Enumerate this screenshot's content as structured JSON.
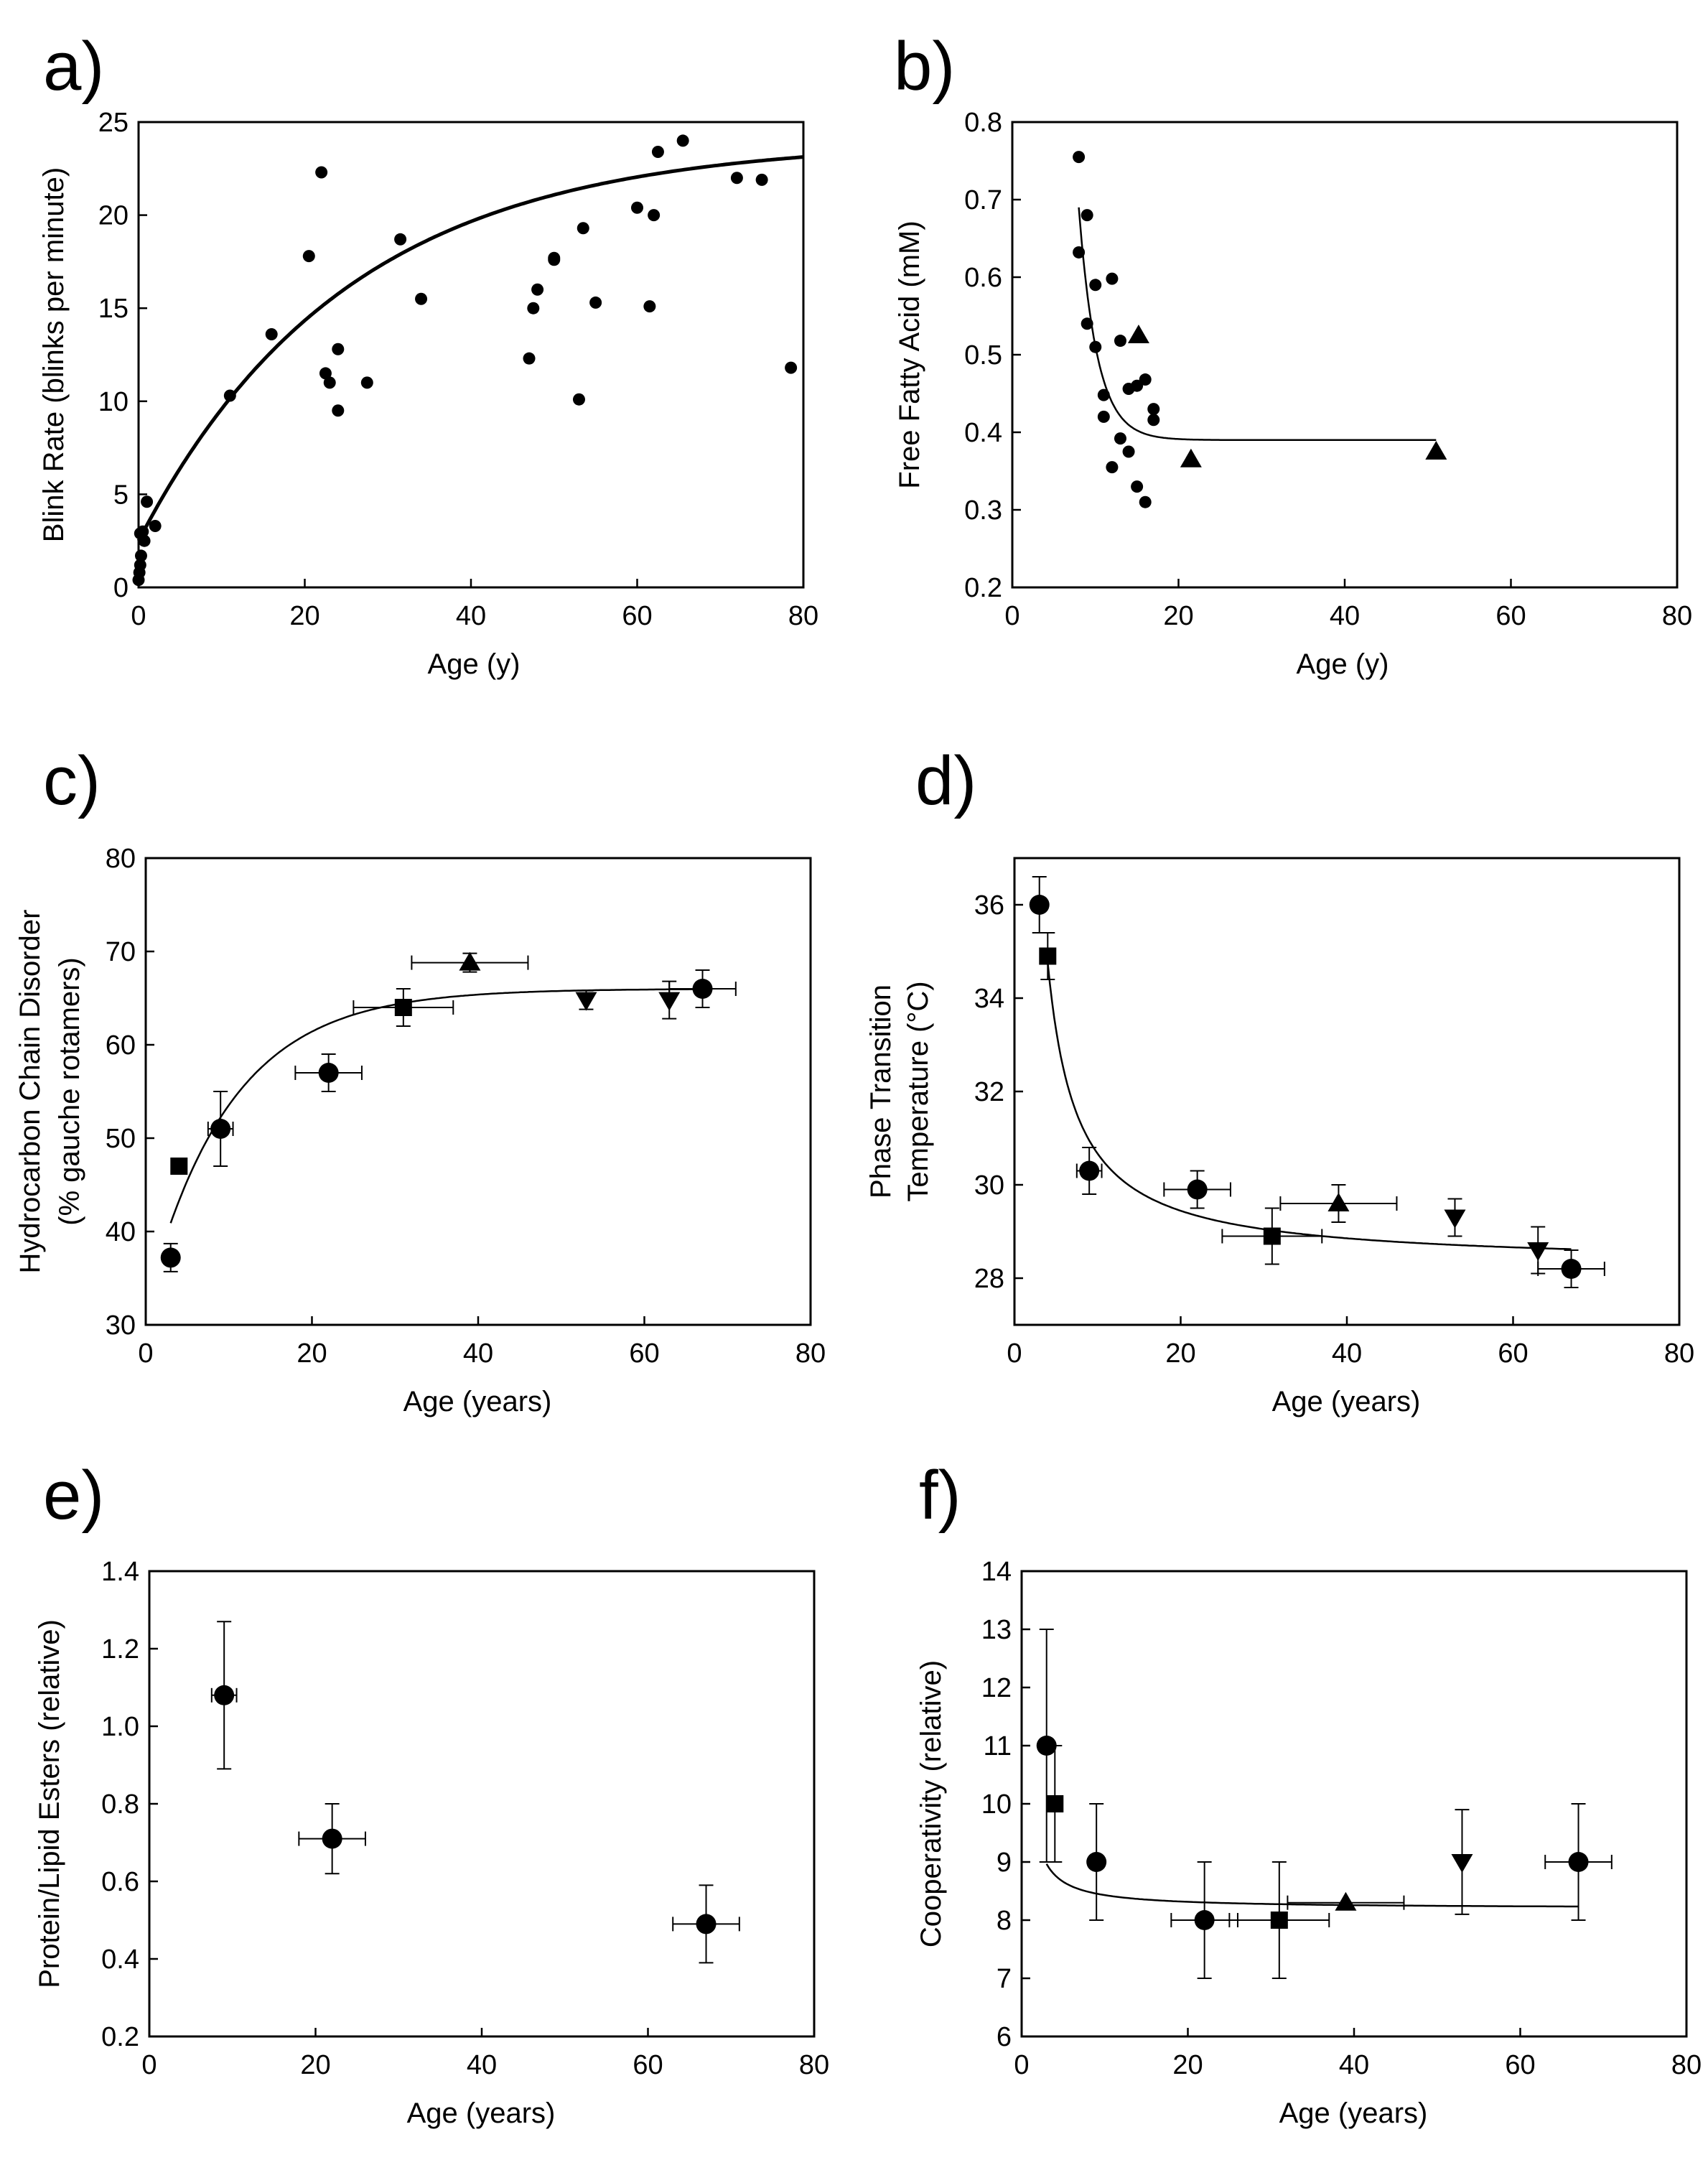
{
  "chart_data": [
    {
      "panel": "a)",
      "type": "scatter",
      "xlabel": "Age (y)",
      "ylabel": [
        "Blink Rate (blinks per minute)"
      ],
      "xlim": [
        0,
        80
      ],
      "ylim": [
        0,
        25
      ],
      "xticks": [
        0,
        20,
        40,
        60,
        80
      ],
      "yticks": [
        0,
        5,
        10,
        15,
        20,
        25
      ],
      "curve": {
        "model": "exp_rise",
        "params": {
          "a": 2.5,
          "b": 21.5,
          "tau": 25
        },
        "x_range": [
          0,
          80
        ]
      },
      "series": [
        {
          "marker": "dot",
          "points": [
            [
              0,
              0.4
            ],
            [
              0.1,
              0.8
            ],
            [
              0.2,
              1.2
            ],
            [
              0.3,
              1.7
            ],
            [
              0.2,
              2.9
            ],
            [
              0.5,
              3.0
            ],
            [
              0.7,
              2.5
            ],
            [
              1,
              4.6
            ],
            [
              2,
              3.3
            ],
            [
              11,
              10.3
            ],
            [
              16,
              13.6
            ],
            [
              20.5,
              17.8
            ],
            [
              22,
              22.3
            ],
            [
              22.5,
              11.5
            ],
            [
              23,
              11.0
            ],
            [
              24,
              12.8
            ],
            [
              24,
              9.5
            ],
            [
              27.5,
              11.0
            ],
            [
              31.5,
              18.7
            ],
            [
              34,
              15.5
            ],
            [
              47,
              12.3
            ],
            [
              47.5,
              15.0
            ],
            [
              48,
              16.0
            ],
            [
              50,
              17.7
            ],
            [
              50,
              17.6
            ],
            [
              53,
              10.1
            ],
            [
              53.5,
              19.3
            ],
            [
              55,
              15.3
            ],
            [
              60,
              20.4
            ],
            [
              61.5,
              15.1
            ],
            [
              62,
              20.0
            ],
            [
              62.5,
              23.4
            ],
            [
              65.5,
              24.0
            ],
            [
              72,
              22.0
            ],
            [
              75,
              21.9
            ],
            [
              78.5,
              11.8
            ]
          ]
        }
      ]
    },
    {
      "panel": "b)",
      "type": "scatter",
      "xlabel": "Age (y)",
      "ylabel": [
        "Free Fatty Acid (mM)"
      ],
      "xlim": [
        0,
        80
      ],
      "ylim": [
        0.2,
        0.8
      ],
      "xticks": [
        0,
        20,
        40,
        60,
        80
      ],
      "yticks": [
        0.2,
        0.3,
        0.4,
        0.5,
        0.6,
        0.7,
        0.8
      ],
      "ytick_decimals": 1,
      "curve": {
        "model": "exp_decay",
        "params": {
          "c": 0.39,
          "a": 0.3,
          "x0": 8,
          "tau": 2.2
        },
        "x_range": [
          8,
          51
        ]
      },
      "series": [
        {
          "marker": "dot",
          "points": [
            [
              8,
              0.755
            ],
            [
              8,
              0.632
            ],
            [
              9,
              0.68
            ],
            [
              9,
              0.54
            ],
            [
              10,
              0.59
            ],
            [
              10,
              0.51
            ],
            [
              11,
              0.448
            ],
            [
              11,
              0.42
            ],
            [
              12,
              0.598
            ],
            [
              12,
              0.355
            ],
            [
              13,
              0.518
            ],
            [
              13,
              0.392
            ],
            [
              14,
              0.456
            ],
            [
              14,
              0.375
            ],
            [
              15,
              0.46
            ],
            [
              15,
              0.33
            ],
            [
              16,
              0.468
            ],
            [
              16,
              0.31
            ],
            [
              17,
              0.43
            ],
            [
              17,
              0.416
            ]
          ]
        },
        {
          "marker": "triangle",
          "points": [
            [
              15.2,
              0.525
            ],
            [
              21.5,
              0.365
            ],
            [
              51,
              0.375
            ]
          ]
        }
      ]
    },
    {
      "panel": "c)",
      "type": "scatter",
      "xlabel": "Age (years)",
      "ylabel": [
        "Hydrocarbon Chain Disorder",
        "(% gauche rotamers)"
      ],
      "xlim": [
        0,
        80
      ],
      "ylim": [
        30,
        80
      ],
      "xticks": [
        0,
        20,
        40,
        60,
        80
      ],
      "yticks": [
        30,
        40,
        50,
        60,
        70,
        80
      ],
      "curve": {
        "model": "exp_rise",
        "params": {
          "a": 40.9,
          "b": 25.1,
          "tau": 10,
          "x0": 3
        },
        "x_range": [
          3,
          67
        ]
      },
      "series": [
        {
          "marker": "circle",
          "points": [
            {
              "x": 3,
              "y": 37.2,
              "yerr": 1.5
            },
            {
              "x": 9,
              "y": 51,
              "yerr": 4,
              "xerr": 1.5
            },
            {
              "x": 22,
              "y": 57,
              "yerr": 2,
              "xerr": 4
            },
            {
              "x": 67,
              "y": 66,
              "yerr": 2,
              "xerr": 4
            }
          ]
        },
        {
          "marker": "square",
          "points": [
            {
              "x": 4,
              "y": 47
            },
            {
              "x": 31,
              "y": 64,
              "yerr": 2,
              "xerr": 6
            }
          ]
        },
        {
          "marker": "triangle",
          "points": [
            {
              "x": 39,
              "y": 68.8,
              "yerr": 1,
              "xerr": 7
            }
          ]
        },
        {
          "marker": "triangle-down",
          "points": [
            {
              "x": 53,
              "y": 64.8,
              "yerr": 1
            },
            {
              "x": 63,
              "y": 64.8,
              "yerr": 2
            }
          ]
        }
      ]
    },
    {
      "panel": "d)",
      "type": "scatter",
      "xlabel": "Age (years)",
      "ylabel": [
        "Phase Transition",
        "Temperature (°C)"
      ],
      "xlim": [
        0,
        80
      ],
      "ylim": [
        27,
        37
      ],
      "xticks": [
        0,
        20,
        40,
        60,
        80
      ],
      "yticks": [
        28,
        30,
        32,
        34,
        36
      ],
      "curve": {
        "model": "reciprocal",
        "params": {
          "c": 28.28,
          "k": 22.7,
          "x0": 0.5
        },
        "x_range": [
          4,
          67
        ]
      },
      "series": [
        {
          "marker": "circle",
          "points": [
            {
              "x": 3,
              "y": 36,
              "yerr": 0.6
            },
            {
              "x": 9,
              "y": 30.3,
              "yerr": 0.5,
              "xerr": 1.5
            },
            {
              "x": 22,
              "y": 29.9,
              "yerr": 0.4,
              "xerr": 4
            },
            {
              "x": 67,
              "y": 28.2,
              "yerr": 0.4,
              "xerr": 4
            }
          ]
        },
        {
          "marker": "square",
          "points": [
            {
              "x": 4,
              "y": 34.9,
              "yerr": 0.5
            },
            {
              "x": 31,
              "y": 28.9,
              "yerr": 0.6,
              "xerr": 6
            }
          ]
        },
        {
          "marker": "triangle",
          "points": [
            {
              "x": 39,
              "y": 29.6,
              "yerr": 0.4,
              "xerr": 7
            }
          ]
        },
        {
          "marker": "triangle-down",
          "points": [
            {
              "x": 53,
              "y": 29.3,
              "yerr": 0.4
            },
            {
              "x": 63,
              "y": 28.6,
              "yerr": 0.5
            }
          ]
        }
      ]
    },
    {
      "panel": "e)",
      "type": "scatter",
      "xlabel": "Age (years)",
      "ylabel": [
        "Protein/Lipid Esters (relative)"
      ],
      "xlim": [
        0,
        80
      ],
      "ylim": [
        0.2,
        1.4
      ],
      "xticks": [
        0,
        20,
        40,
        60,
        80
      ],
      "yticks": [
        0.2,
        0.4,
        0.6,
        0.8,
        1.0,
        1.2,
        1.4
      ],
      "ytick_decimals": 1,
      "series": [
        {
          "marker": "circle",
          "points": [
            {
              "x": 9,
              "y": 1.08,
              "yerr": 0.19,
              "xerr": 1.5
            },
            {
              "x": 22,
              "y": 0.71,
              "yerr": 0.09,
              "xerr": 4
            },
            {
              "x": 67,
              "y": 0.49,
              "yerr": 0.1,
              "xerr": 4
            }
          ]
        }
      ]
    },
    {
      "panel": "f)",
      "type": "scatter",
      "xlabel": "Age (years)",
      "ylabel": [
        "Cooperativity (relative)"
      ],
      "xlim": [
        0,
        80
      ],
      "ylim": [
        6,
        14
      ],
      "xticks": [
        0,
        20,
        40,
        60,
        80
      ],
      "yticks": [
        6,
        7,
        8,
        9,
        10,
        11,
        12,
        13,
        14
      ],
      "curve": {
        "model": "reciprocal",
        "params": {
          "c": 8.2,
          "k": 2.3,
          "x0": 0
        },
        "x_range": [
          3,
          67
        ]
      },
      "series": [
        {
          "marker": "circle",
          "points": [
            {
              "x": 3,
              "y": 11,
              "yerr": 2
            },
            {
              "x": 9,
              "y": 9,
              "yerr": 1
            },
            {
              "x": 22,
              "y": 8,
              "yerr": 1,
              "xerr": 4
            },
            {
              "x": 67,
              "y": 9,
              "yerr": 1,
              "xerr": 4
            }
          ]
        },
        {
          "marker": "square",
          "points": [
            {
              "x": 4,
              "y": 10,
              "yerr": 1
            },
            {
              "x": 31,
              "y": 8,
              "yerr": 1,
              "xerr": 6
            }
          ]
        },
        {
          "marker": "triangle",
          "points": [
            {
              "x": 39,
              "y": 8.3,
              "xerr": 7
            }
          ]
        },
        {
          "marker": "triangle-down",
          "points": [
            {
              "x": 53,
              "y": 9,
              "yerr": 0.9
            }
          ]
        }
      ]
    }
  ]
}
